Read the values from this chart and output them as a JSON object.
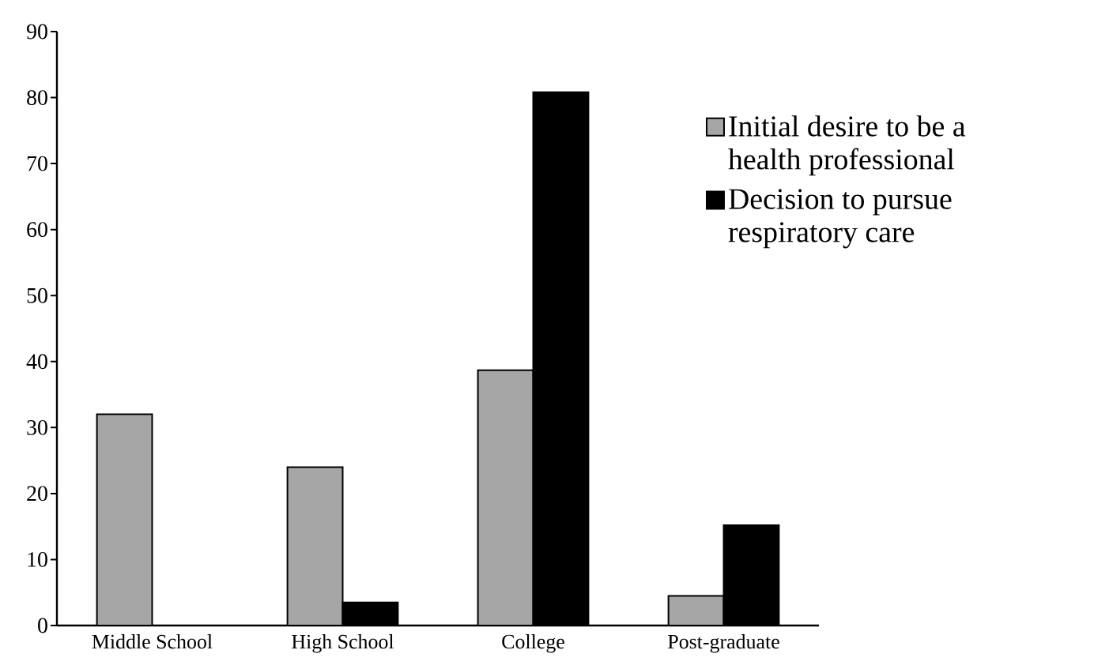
{
  "chart_data": {
    "type": "bar",
    "categories": [
      "Middle School",
      "High School",
      "College",
      "Post-graduate"
    ],
    "series": [
      {
        "name": "Initial desire to be a health professional",
        "color": "#a6a6a6",
        "values": [
          32,
          24,
          38.7,
          4.5
        ]
      },
      {
        "name": "Decision to pursue respiratory care",
        "color": "#000000",
        "values": [
          0,
          3.5,
          80.8,
          15.2
        ]
      }
    ],
    "ylim": [
      0,
      90
    ],
    "yticks": [
      0,
      10,
      20,
      30,
      40,
      50,
      60,
      70,
      80,
      90
    ],
    "legend": "right"
  }
}
